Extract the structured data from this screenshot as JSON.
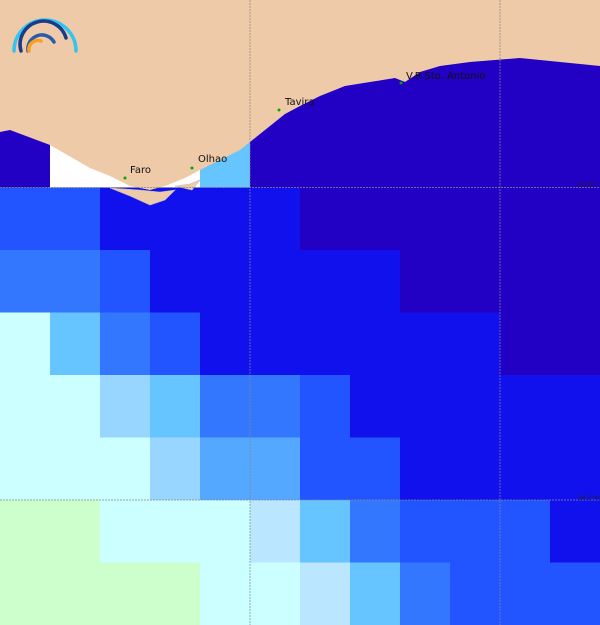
{
  "map": {
    "palette": [
      "#ffffff",
      "#ccffcc",
      "#ccffff",
      "#bbe6ff",
      "#99d6ff",
      "#66c4ff",
      "#55a8ff",
      "#3377ff",
      "#2255ff",
      "#1111ee",
      "#2200c4"
    ],
    "land_color": "#eecaa8",
    "grid_rows": [
      [
        10,
        0,
        0,
        0,
        5,
        10,
        10,
        10,
        10,
        10,
        10,
        10
      ],
      [
        8,
        8,
        9,
        9,
        9,
        9,
        10,
        10,
        10,
        10,
        10,
        10
      ],
      [
        7,
        7,
        8,
        9,
        9,
        9,
        9,
        9,
        10,
        10,
        10,
        10
      ],
      [
        2,
        5,
        7,
        8,
        9,
        9,
        9,
        9,
        9,
        9,
        10,
        10
      ],
      [
        2,
        2,
        4,
        5,
        7,
        7,
        8,
        9,
        9,
        9,
        9,
        9
      ],
      [
        2,
        2,
        2,
        4,
        6,
        6,
        8,
        8,
        9,
        9,
        9,
        9
      ],
      [
        1,
        1,
        2,
        2,
        2,
        3,
        5,
        7,
        8,
        8,
        8,
        9
      ],
      [
        1,
        1,
        1,
        1,
        2,
        2,
        3,
        5,
        7,
        8,
        8,
        8
      ]
    ],
    "places": [
      {
        "name": "Faro"
      },
      {
        "name": "Olhao"
      },
      {
        "name": "Tavira"
      },
      {
        "name": "V.R.Sto. Antonio"
      }
    ],
    "latitude_labels": [
      "37°N",
      "36.5°N"
    ]
  }
}
